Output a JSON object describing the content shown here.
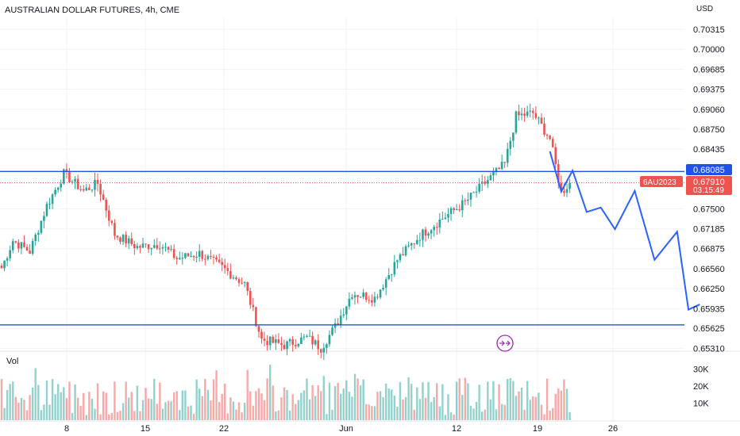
{
  "header": {
    "title": "AUSTRALIAN DOLLAR FUTURES, 4h, CME",
    "currency": "USD"
  },
  "volume": {
    "label": "Vol",
    "ticks": [
      "30K",
      "20K",
      "10K"
    ]
  },
  "badges": {
    "resistance": "0.68085",
    "symbol": "6AU2023",
    "last_price": "0.67910",
    "countdown": "03:15:49"
  },
  "colors": {
    "up": "#26a69a",
    "down": "#ef5350",
    "level_line": "#1e53e5",
    "projection": "#2962ff",
    "grid": "#f0f3fa"
  },
  "chart_data": {
    "type": "candlestick",
    "title": "AUSTRALIAN DOLLAR FUTURES, 4h, CME",
    "price_ticks": [
      0.70315,
      0.7,
      0.69685,
      0.69375,
      0.6906,
      0.6875,
      0.68435,
      0.675,
      0.67185,
      0.66875,
      0.6656,
      0.6625,
      0.65935,
      0.65625,
      0.6531
    ],
    "x_ticks": [
      "8",
      "15",
      "22",
      "Jun",
      "12",
      "19",
      "26"
    ],
    "ylim": [
      0.6528,
      0.705
    ],
    "horizontal_levels": [
      0.68085,
      0.6568
    ],
    "last_price": 0.6791,
    "price_path": [
      {
        "i": 0,
        "p": 0.6657
      },
      {
        "i": 4,
        "p": 0.67
      },
      {
        "i": 10,
        "p": 0.6683
      },
      {
        "i": 16,
        "p": 0.6755
      },
      {
        "i": 22,
        "p": 0.6805
      },
      {
        "i": 29,
        "p": 0.6778
      },
      {
        "i": 34,
        "p": 0.679
      },
      {
        "i": 40,
        "p": 0.671
      },
      {
        "i": 48,
        "p": 0.669
      },
      {
        "i": 56,
        "p": 0.6695
      },
      {
        "i": 62,
        "p": 0.6672
      },
      {
        "i": 70,
        "p": 0.668
      },
      {
        "i": 78,
        "p": 0.6658
      },
      {
        "i": 86,
        "p": 0.6632
      },
      {
        "i": 92,
        "p": 0.6545
      },
      {
        "i": 100,
        "p": 0.6536
      },
      {
        "i": 108,
        "p": 0.6548
      },
      {
        "i": 113,
        "p": 0.6532
      },
      {
        "i": 118,
        "p": 0.6565
      },
      {
        "i": 124,
        "p": 0.6618
      },
      {
        "i": 132,
        "p": 0.661
      },
      {
        "i": 140,
        "p": 0.667
      },
      {
        "i": 148,
        "p": 0.6708
      },
      {
        "i": 156,
        "p": 0.6735
      },
      {
        "i": 164,
        "p": 0.676
      },
      {
        "i": 172,
        "p": 0.6795
      },
      {
        "i": 178,
        "p": 0.682
      },
      {
        "i": 182,
        "p": 0.6895
      },
      {
        "i": 188,
        "p": 0.69
      },
      {
        "i": 194,
        "p": 0.686
      },
      {
        "i": 198,
        "p": 0.6775
      },
      {
        "i": 201,
        "p": 0.6791
      }
    ],
    "projection": [
      {
        "i": 194,
        "p": 0.684
      },
      {
        "i": 198,
        "p": 0.6777
      },
      {
        "i": 202,
        "p": 0.681
      },
      {
        "i": 207,
        "p": 0.6745
      },
      {
        "i": 212,
        "p": 0.6752
      },
      {
        "i": 217,
        "p": 0.6718
      },
      {
        "i": 224,
        "p": 0.6778
      },
      {
        "i": 231,
        "p": 0.667
      },
      {
        "i": 239,
        "p": 0.6714
      },
      {
        "i": 243,
        "p": 0.6592
      },
      {
        "i": 247,
        "p": 0.66
      }
    ],
    "volume_ticks": [
      30000,
      20000,
      10000
    ]
  }
}
